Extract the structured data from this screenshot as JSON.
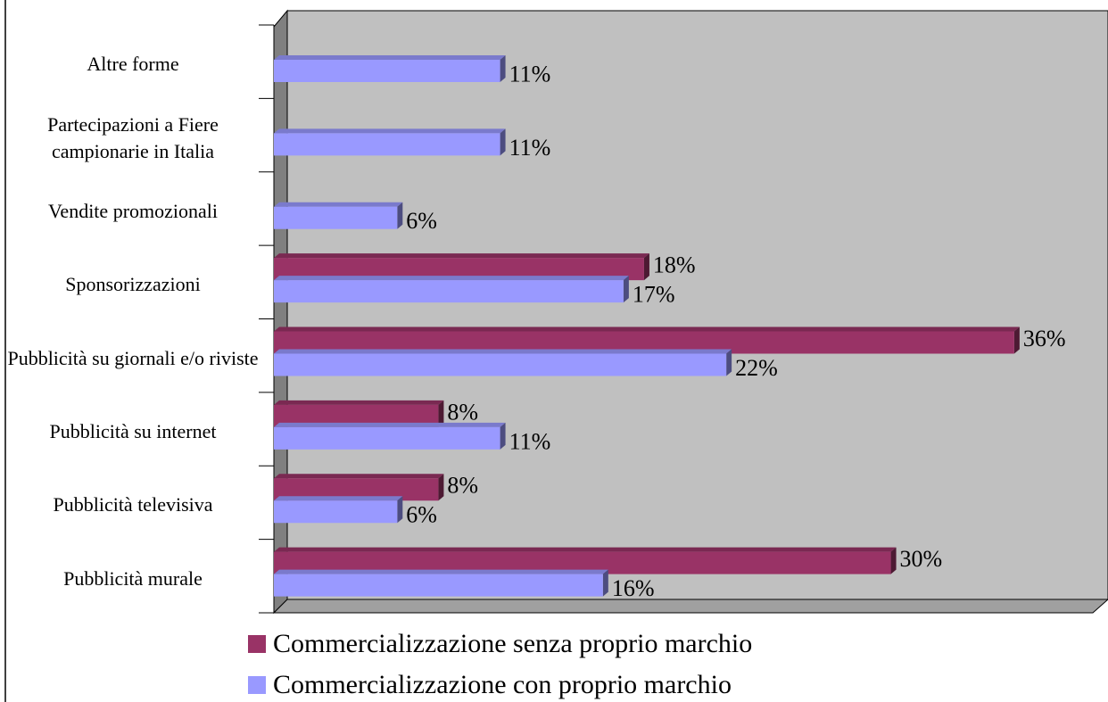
{
  "chart_data": {
    "type": "bar",
    "orientation": "horizontal",
    "categories": [
      "Altre forme",
      "Partecipazioni a Fiere campionarie in Italia",
      "Vendite promozionali",
      "Sponsorizzazioni",
      "Pubblicità su giornali e/o riviste",
      "Pubblicità su internet",
      "Pubblicità televisiva",
      "Pubblicità murale"
    ],
    "series": [
      {
        "name": "Commercializzazione senza proprio marchio",
        "color": "#993366",
        "values": [
          null,
          null,
          null,
          18,
          36,
          8,
          8,
          30
        ],
        "value_labels": [
          null,
          null,
          null,
          "18%",
          "36%",
          "8%",
          "8%",
          "30%"
        ]
      },
      {
        "name": "Commercializzazione con proprio marchio",
        "color": "#9999ff",
        "values": [
          11,
          11,
          6,
          17,
          22,
          11,
          6,
          16
        ],
        "value_labels": [
          "11%",
          "11%",
          "6%",
          "17%",
          "22%",
          "11%",
          "6%",
          "16%"
        ]
      }
    ],
    "grid": false,
    "legend": "bottom"
  }
}
